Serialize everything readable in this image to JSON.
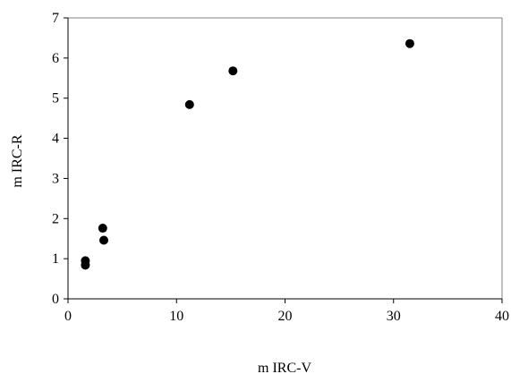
{
  "chart_data": {
    "type": "scatter",
    "title": "",
    "xlabel": "m IRC-V",
    "ylabel": "m IRC-R",
    "xlim": [
      0,
      40
    ],
    "ylim": [
      0,
      7
    ],
    "x_ticks": [
      0,
      10,
      20,
      30,
      40
    ],
    "y_ticks": [
      0,
      1,
      2,
      3,
      4,
      5,
      6,
      7
    ],
    "grid": false,
    "legend": "none",
    "marker": "filled-circle",
    "marker_color": "#000000",
    "series": [
      {
        "points": [
          {
            "x": 1.6,
            "y": 0.95
          },
          {
            "x": 1.6,
            "y": 0.84
          },
          {
            "x": 3.2,
            "y": 1.76
          },
          {
            "x": 3.3,
            "y": 1.46
          },
          {
            "x": 11.2,
            "y": 4.84
          },
          {
            "x": 15.2,
            "y": 5.68
          },
          {
            "x": 31.5,
            "y": 6.36
          }
        ]
      }
    ]
  }
}
